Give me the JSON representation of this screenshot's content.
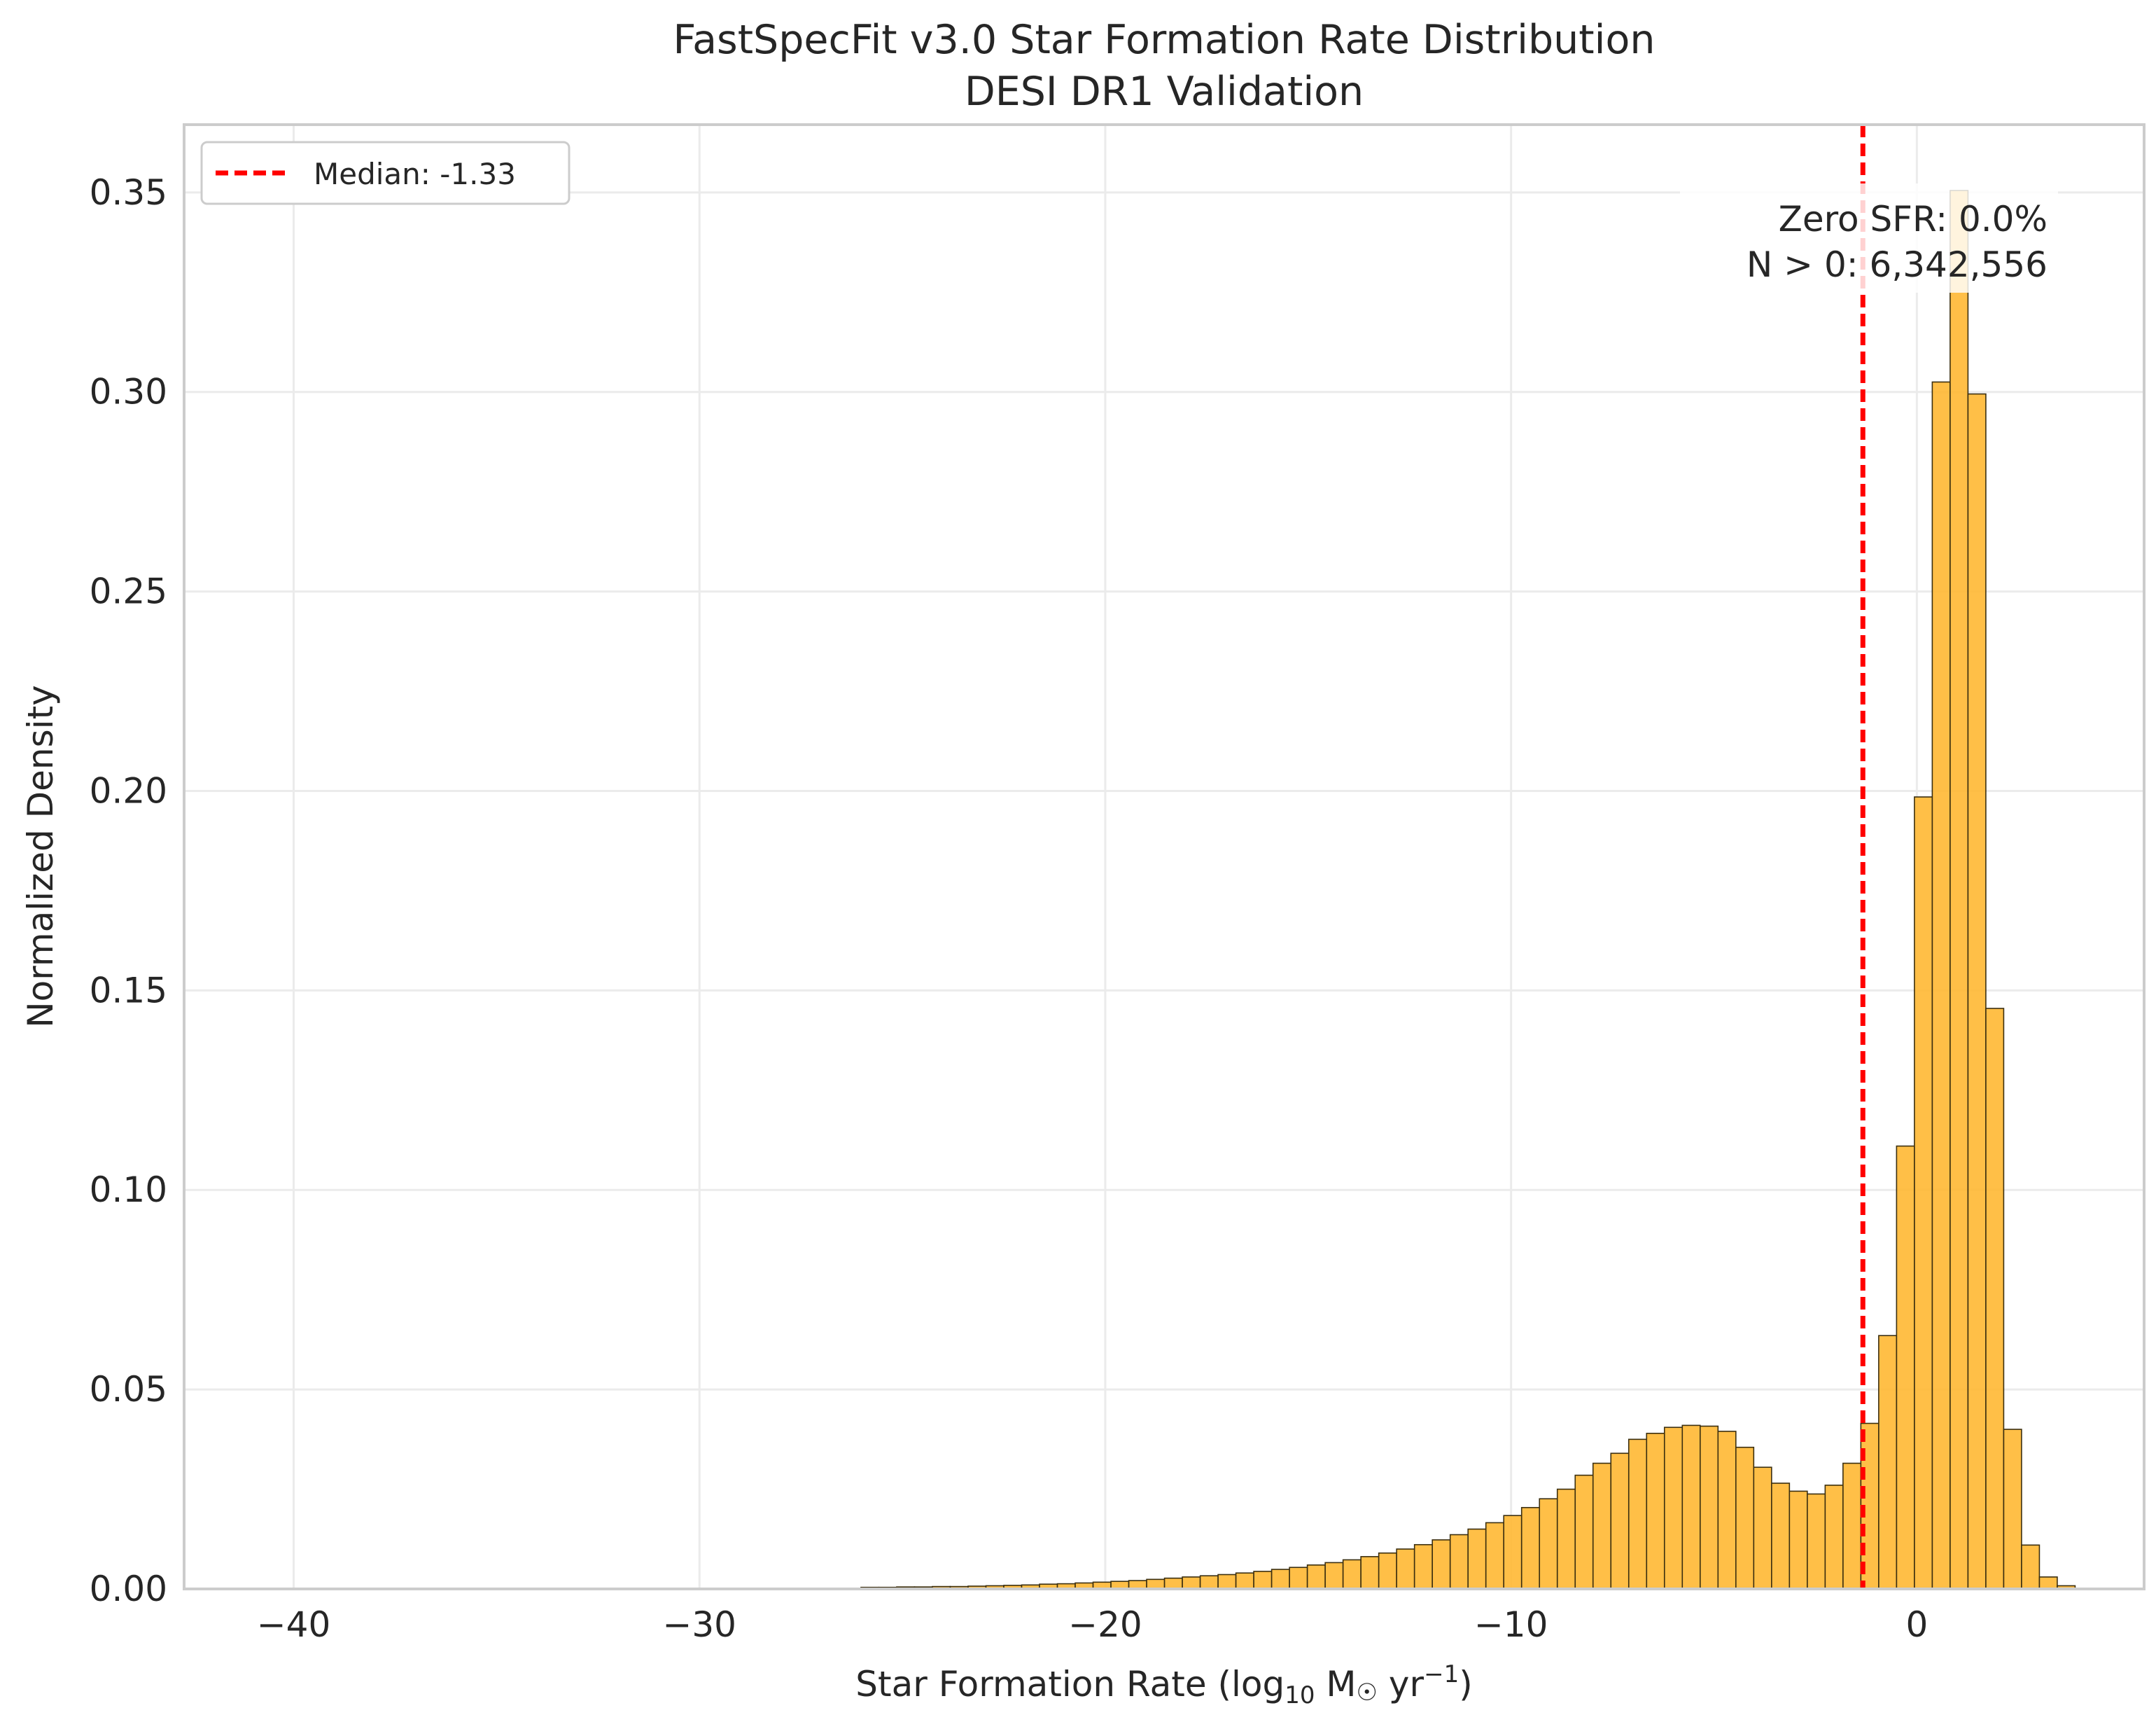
{
  "chart_data": {
    "type": "bar",
    "title": "FastSpecFit v3.0 Star Formation Rate Distribution",
    "subtitle": "DESI DR1 Validation",
    "xlabel": "Star Formation Rate (log",
    "xlabel_sub": "10",
    "xlabel_mid": " M",
    "xlabel_sun": "☉",
    "xlabel_end": " yr",
    "xlabel_sup": "−1",
    "xlabel_close": ")",
    "ylabel": "Normalized Density",
    "xlim": [
      -42.7,
      5.6
    ],
    "ylim": [
      0,
      0.367
    ],
    "grid": true,
    "x_ticks": [
      -40,
      -30,
      -20,
      -10,
      0
    ],
    "x_tick_labels": [
      "−40",
      "−30",
      "−20",
      "−10",
      "0"
    ],
    "y_ticks": [
      0.0,
      0.05,
      0.1,
      0.15,
      0.2,
      0.25,
      0.3,
      0.35
    ],
    "y_tick_labels": [
      "0.00",
      "0.05",
      "0.10",
      "0.15",
      "0.20",
      "0.25",
      "0.30",
      "0.35"
    ],
    "bar_color": "#ffb833",
    "edge_color": "#3b2f10",
    "bin_width": 0.44,
    "bins": [
      {
        "x": -25.8,
        "y": 0.0004
      },
      {
        "x": -25.36,
        "y": 0.0004
      },
      {
        "x": -24.92,
        "y": 0.0005
      },
      {
        "x": -24.48,
        "y": 0.0005
      },
      {
        "x": -24.04,
        "y": 0.0006
      },
      {
        "x": -23.6,
        "y": 0.0006
      },
      {
        "x": -23.16,
        "y": 0.0007
      },
      {
        "x": -22.72,
        "y": 0.0008
      },
      {
        "x": -22.28,
        "y": 0.0009
      },
      {
        "x": -21.84,
        "y": 0.001
      },
      {
        "x": -21.4,
        "y": 0.0012
      },
      {
        "x": -20.96,
        "y": 0.0013
      },
      {
        "x": -20.52,
        "y": 0.0015
      },
      {
        "x": -20.08,
        "y": 0.0017
      },
      {
        "x": -19.64,
        "y": 0.0019
      },
      {
        "x": -19.2,
        "y": 0.0021
      },
      {
        "x": -18.76,
        "y": 0.0024
      },
      {
        "x": -18.32,
        "y": 0.0027
      },
      {
        "x": -17.88,
        "y": 0.003
      },
      {
        "x": -17.44,
        "y": 0.0033
      },
      {
        "x": -17.0,
        "y": 0.0036
      },
      {
        "x": -16.56,
        "y": 0.004
      },
      {
        "x": -16.12,
        "y": 0.0044
      },
      {
        "x": -15.68,
        "y": 0.0049
      },
      {
        "x": -15.24,
        "y": 0.0054
      },
      {
        "x": -14.8,
        "y": 0.006
      },
      {
        "x": -14.36,
        "y": 0.0066
      },
      {
        "x": -13.92,
        "y": 0.0073
      },
      {
        "x": -13.48,
        "y": 0.0081
      },
      {
        "x": -13.04,
        "y": 0.009
      },
      {
        "x": -12.6,
        "y": 0.01
      },
      {
        "x": -12.16,
        "y": 0.0111
      },
      {
        "x": -11.72,
        "y": 0.0123
      },
      {
        "x": -11.28,
        "y": 0.0136
      },
      {
        "x": -10.84,
        "y": 0.015
      },
      {
        "x": -10.4,
        "y": 0.0166
      },
      {
        "x": -9.96,
        "y": 0.0184
      },
      {
        "x": -9.52,
        "y": 0.0204
      },
      {
        "x": -9.08,
        "y": 0.0226
      },
      {
        "x": -8.64,
        "y": 0.025
      },
      {
        "x": -8.2,
        "y": 0.0285
      },
      {
        "x": -7.76,
        "y": 0.0315
      },
      {
        "x": -7.32,
        "y": 0.034
      },
      {
        "x": -6.88,
        "y": 0.0375
      },
      {
        "x": -6.44,
        "y": 0.039
      },
      {
        "x": -6.0,
        "y": 0.0405
      },
      {
        "x": -5.56,
        "y": 0.041
      },
      {
        "x": -5.12,
        "y": 0.0408
      },
      {
        "x": -4.68,
        "y": 0.0395
      },
      {
        "x": -4.24,
        "y": 0.0355
      },
      {
        "x": -3.8,
        "y": 0.0305
      },
      {
        "x": -3.36,
        "y": 0.0265
      },
      {
        "x": -2.92,
        "y": 0.0245
      },
      {
        "x": -2.48,
        "y": 0.0238
      },
      {
        "x": -2.04,
        "y": 0.026
      },
      {
        "x": -1.6,
        "y": 0.0315
      },
      {
        "x": -1.16,
        "y": 0.0415
      },
      {
        "x": -0.72,
        "y": 0.0635
      },
      {
        "x": -0.28,
        "y": 0.111
      },
      {
        "x": 0.16,
        "y": 0.1985
      },
      {
        "x": 0.6,
        "y": 0.3025
      },
      {
        "x": 1.04,
        "y": 0.3505
      },
      {
        "x": 1.48,
        "y": 0.2995
      },
      {
        "x": 1.92,
        "y": 0.1455
      },
      {
        "x": 2.36,
        "y": 0.04
      },
      {
        "x": 2.8,
        "y": 0.011
      },
      {
        "x": 3.24,
        "y": 0.003
      },
      {
        "x": 3.68,
        "y": 0.0008
      }
    ],
    "median": {
      "value": -1.33,
      "label": "Median: -1.33",
      "color": "#ff0000"
    },
    "annotation": {
      "line1": "Zero SFR: 0.0%",
      "line2": "N > 0: 6,342,556"
    },
    "legend": {
      "position": "top-left",
      "entries": [
        "Median: -1.33"
      ]
    }
  }
}
